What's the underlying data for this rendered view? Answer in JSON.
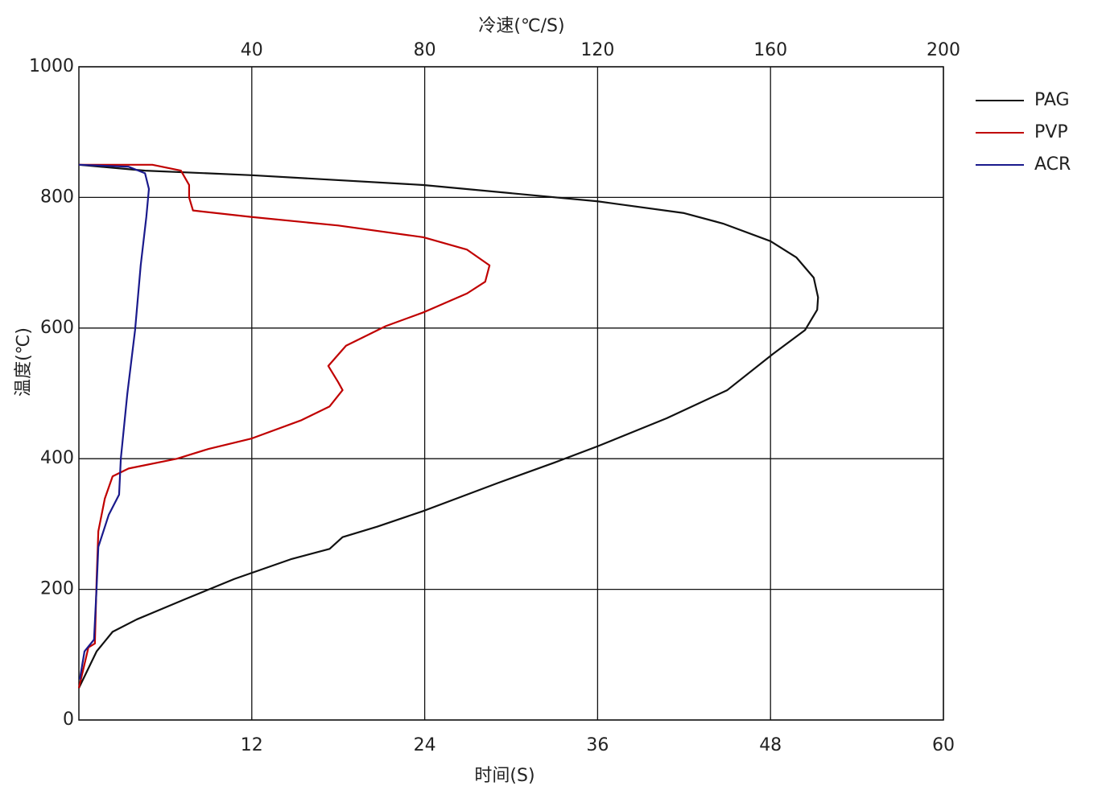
{
  "chart_data": {
    "type": "line",
    "xlabel": "冷速(℃/S)",
    "x2label": "时间(S)",
    "ylabel": "温度(℃)",
    "xlim": [
      0,
      200
    ],
    "xticks": [
      40,
      80,
      120,
      160,
      200
    ],
    "x2lim": [
      0,
      60
    ],
    "x2ticks": [
      12,
      24,
      36,
      48,
      60
    ],
    "ylim": [
      0,
      1000
    ],
    "yticks": [
      0,
      200,
      400,
      600,
      800,
      1000
    ],
    "grid": true,
    "legend": "right",
    "series": [
      {
        "name": "PAG",
        "color": "#111111",
        "label_color": "#2f4d9c",
        "x": [
          0,
          15.3,
          40,
          79.7,
          120,
          140,
          149,
          160,
          166,
          170,
          171,
          170.8,
          168,
          160.5,
          150,
          136,
          120,
          110,
          97,
          79.7,
          69,
          61,
          58,
          49,
          36,
          24.6,
          13.4,
          7.8,
          4.1,
          0
        ],
        "values": [
          850,
          841,
          834,
          819,
          794,
          776,
          760,
          733,
          708,
          677,
          647,
          628,
          597,
          560,
          505,
          462,
          419,
          394,
          363,
          320,
          296,
          280,
          262,
          246,
          216,
          185,
          154,
          135,
          105,
          49
        ]
      },
      {
        "name": "PVP",
        "color": "#c00000",
        "label_color": "#c8101c",
        "x": [
          0,
          17,
          23.6,
          25.5,
          25.5,
          26.4,
          40,
          60,
          79.7,
          89.8,
          95,
          94,
          89.8,
          79.7,
          71,
          61.8,
          57.7,
          60,
          61,
          58,
          51.5,
          40,
          30,
          22.7,
          11.5,
          7.8,
          6,
          4.5,
          4.1,
          3.7,
          2.2,
          0
        ],
        "values": [
          850,
          850,
          841,
          819,
          800,
          780,
          770,
          757,
          739,
          720,
          696,
          671,
          653,
          624,
          603,
          573,
          542,
          517,
          505,
          480,
          459,
          431,
          415,
          400,
          385,
          373,
          339,
          289,
          215,
          117,
          111,
          49
        ]
      },
      {
        "name": "ACR",
        "color": "#1a1a8c",
        "label_color": "#2a3f9a",
        "x": [
          0,
          11.5,
          15.3,
          16.2,
          15.6,
          14.3,
          13,
          11.2,
          9.7,
          9.3,
          6.9,
          4.5,
          4.1,
          3.5,
          1.3,
          0.2
        ],
        "values": [
          850,
          847,
          837,
          813,
          770,
          696,
          597,
          499,
          400,
          345,
          314,
          265,
          203,
          123,
          105,
          62
        ]
      }
    ]
  }
}
